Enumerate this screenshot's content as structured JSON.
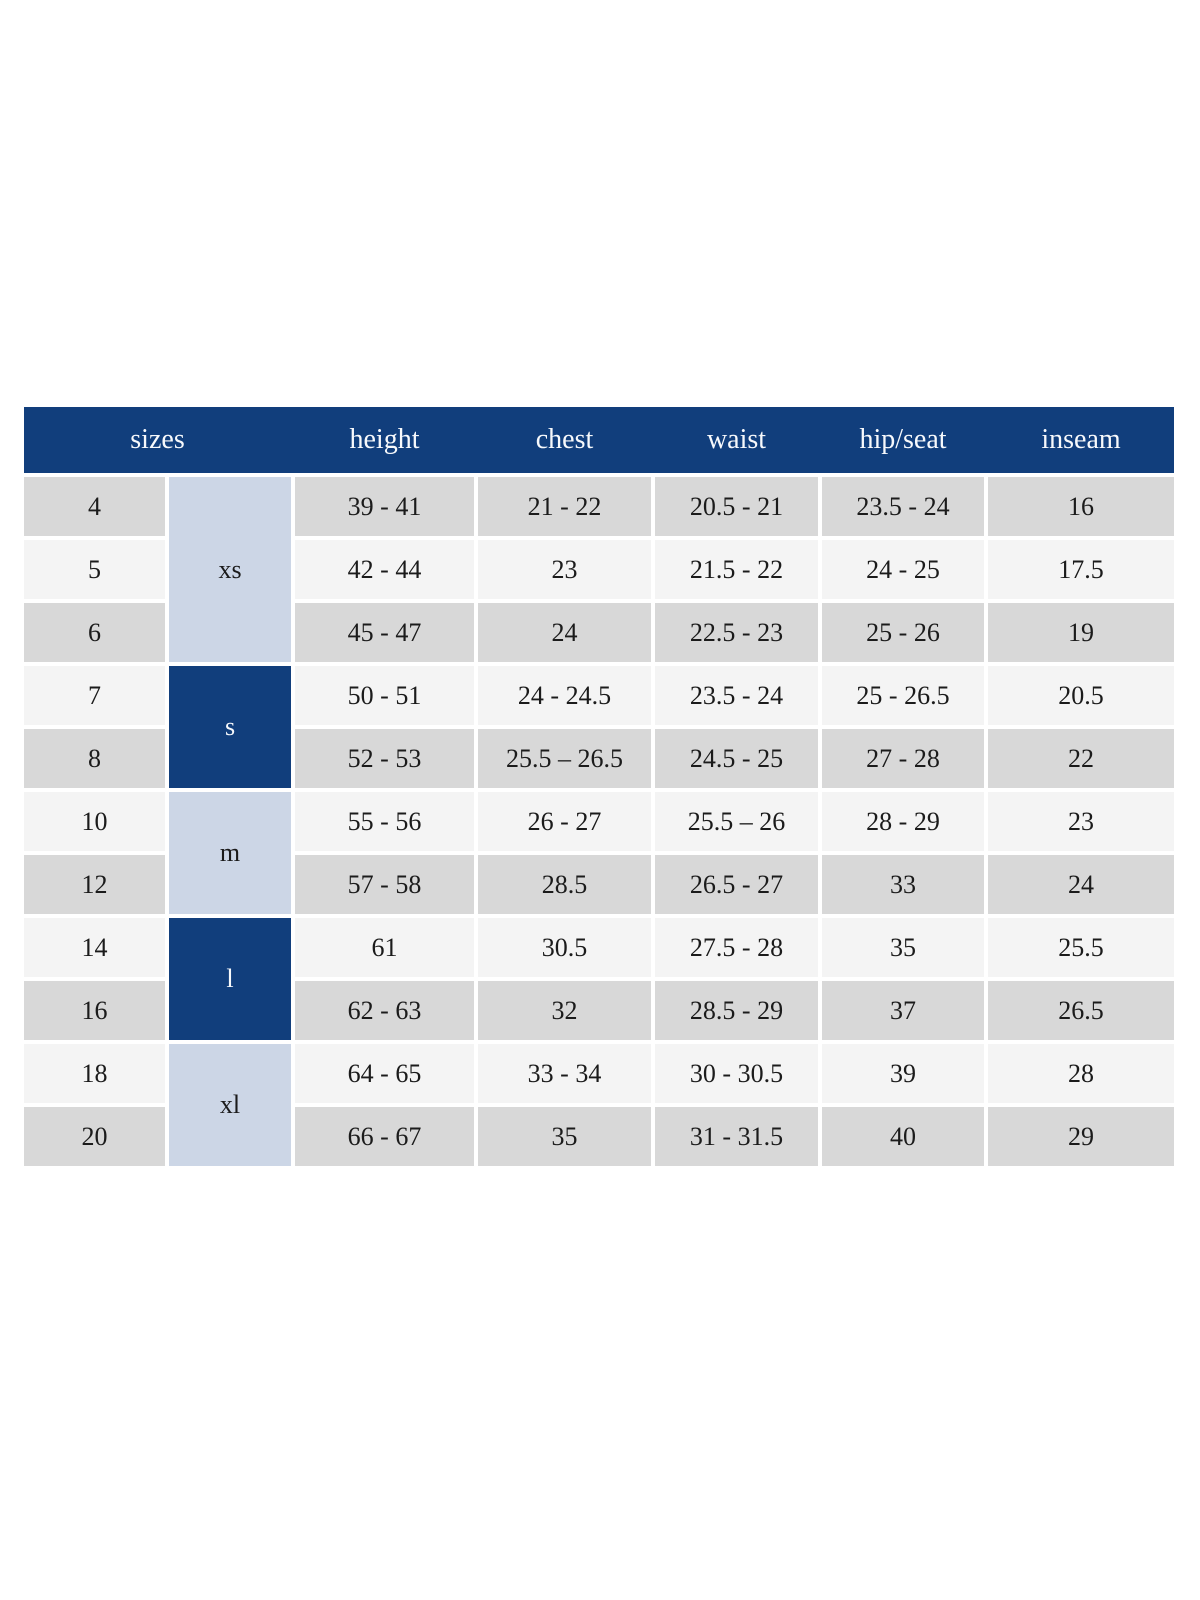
{
  "table": {
    "header": [
      "sizes",
      "height",
      "chest",
      "waist",
      "hip/seat",
      "inseam"
    ],
    "groups": [
      {
        "label": "xs",
        "tone": "light",
        "rows": 3
      },
      {
        "label": "s",
        "tone": "dark",
        "rows": 2
      },
      {
        "label": "m",
        "tone": "light",
        "rows": 2
      },
      {
        "label": "l",
        "tone": "dark",
        "rows": 2
      },
      {
        "label": "xl",
        "tone": "light",
        "rows": 2
      }
    ],
    "rows": [
      {
        "size": "4",
        "height": "39 - 41",
        "chest": "21 - 22",
        "waist": "20.5 - 21",
        "hip_seat": "23.5 - 24",
        "inseam": "16"
      },
      {
        "size": "5",
        "height": "42 - 44",
        "chest": "23",
        "waist": "21.5 - 22",
        "hip_seat": "24 - 25",
        "inseam": "17.5"
      },
      {
        "size": "6",
        "height": "45 - 47",
        "chest": "24",
        "waist": "22.5 - 23",
        "hip_seat": "25 - 26",
        "inseam": "19"
      },
      {
        "size": "7",
        "height": "50 - 51",
        "chest": "24 - 24.5",
        "waist": "23.5 - 24",
        "hip_seat": "25 - 26.5",
        "inseam": "20.5"
      },
      {
        "size": "8",
        "height": "52 - 53",
        "chest": "25.5 – 26.5",
        "waist": "24.5 - 25",
        "hip_seat": "27 - 28",
        "inseam": "22"
      },
      {
        "size": "10",
        "height": "55 - 56",
        "chest": "26 - 27",
        "waist": "25.5 – 26",
        "hip_seat": "28 - 29",
        "inseam": "23"
      },
      {
        "size": "12",
        "height": "57 - 58",
        "chest": "28.5",
        "waist": "26.5 - 27",
        "hip_seat": "33",
        "inseam": "24"
      },
      {
        "size": "14",
        "height": "61",
        "chest": "30.5",
        "waist": "27.5 - 28",
        "hip_seat": "35",
        "inseam": "25.5"
      },
      {
        "size": "16",
        "height": "62 - 63",
        "chest": "32",
        "waist": "28.5 - 29",
        "hip_seat": "37",
        "inseam": "26.5"
      },
      {
        "size": "18",
        "height": "64 - 65",
        "chest": "33 - 34",
        "waist": "30 - 30.5",
        "hip_seat": "39",
        "inseam": "28"
      },
      {
        "size": "20",
        "height": "66 - 67",
        "chest": "35",
        "waist": "31 - 31.5",
        "hip_seat": "40",
        "inseam": "29"
      }
    ],
    "colors": {
      "header_bg": "#113e7c",
      "header_fg": "#f7f9fc",
      "group_light_bg": "#ccd6e6",
      "group_dark_bg": "#113e7c",
      "row_gray_bg": "#d8d8d8",
      "row_light_bg": "#f4f4f4"
    }
  }
}
